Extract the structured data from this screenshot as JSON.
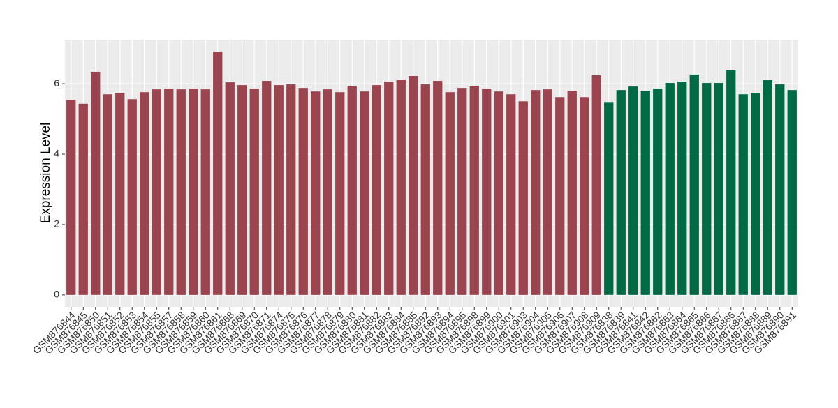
{
  "chart_data": {
    "type": "bar",
    "y_label": "Expression Level",
    "categories": [
      "GSM876844",
      "GSM876845",
      "GSM876850",
      "GSM876851",
      "GSM876852",
      "GSM876853",
      "GSM876854",
      "GSM876855",
      "GSM876857",
      "GSM876858",
      "GSM876859",
      "GSM876860",
      "GSM876861",
      "GSM876868",
      "GSM876869",
      "GSM876870",
      "GSM876871",
      "GSM876874",
      "GSM876875",
      "GSM876876",
      "GSM876877",
      "GSM876878",
      "GSM876879",
      "GSM876880",
      "GSM876881",
      "GSM876882",
      "GSM876883",
      "GSM876884",
      "GSM876885",
      "GSM876892",
      "GSM876893",
      "GSM876894",
      "GSM876895",
      "GSM876898",
      "GSM876899",
      "GSM876900",
      "GSM876901",
      "GSM876903",
      "GSM876904",
      "GSM876905",
      "GSM876906",
      "GSM876907",
      "GSM876908",
      "GSM876909",
      "GSM876838",
      "GSM876839",
      "GSM876841",
      "GSM876842",
      "GSM876862",
      "GSM876863",
      "GSM876864",
      "GSM876865",
      "GSM876866",
      "GSM876867",
      "GSM876886",
      "GSM876887",
      "GSM876888",
      "GSM876889",
      "GSM876890",
      "GSM876891"
    ],
    "values": [
      5.54,
      5.43,
      6.34,
      5.7,
      5.74,
      5.56,
      5.76,
      5.84,
      5.86,
      5.84,
      5.86,
      5.84,
      6.91,
      6.04,
      5.96,
      5.86,
      6.08,
      5.96,
      5.98,
      5.88,
      5.78,
      5.84,
      5.76,
      5.94,
      5.78,
      5.96,
      6.06,
      6.12,
      6.22,
      5.98,
      6.08,
      5.76,
      5.88,
      5.94,
      5.86,
      5.78,
      5.7,
      5.5,
      5.82,
      5.84,
      5.62,
      5.8,
      5.62,
      6.24,
      5.48,
      5.82,
      5.92,
      5.8,
      5.86,
      6.02,
      6.06,
      6.26,
      6.02,
      6.02,
      6.38,
      5.7,
      5.74,
      6.1,
      5.98,
      5.82
    ],
    "colors": [
      "#99444f",
      "#99444f",
      "#99444f",
      "#99444f",
      "#99444f",
      "#99444f",
      "#99444f",
      "#99444f",
      "#99444f",
      "#99444f",
      "#99444f",
      "#99444f",
      "#99444f",
      "#99444f",
      "#99444f",
      "#99444f",
      "#99444f",
      "#99444f",
      "#99444f",
      "#99444f",
      "#99444f",
      "#99444f",
      "#99444f",
      "#99444f",
      "#99444f",
      "#99444f",
      "#99444f",
      "#99444f",
      "#99444f",
      "#99444f",
      "#99444f",
      "#99444f",
      "#99444f",
      "#99444f",
      "#99444f",
      "#99444f",
      "#99444f",
      "#99444f",
      "#99444f",
      "#99444f",
      "#99444f",
      "#99444f",
      "#99444f",
      "#99444f",
      "#006a44",
      "#006a44",
      "#006a44",
      "#006a44",
      "#006a44",
      "#006a44",
      "#006a44",
      "#006a44",
      "#006a44",
      "#006a44",
      "#006a44",
      "#006a44",
      "#006a44",
      "#006a44",
      "#006a44",
      "#006a44"
    ],
    "ylim": [
      -0.34,
      7.25
    ],
    "yticks": [
      0,
      2,
      4,
      6
    ],
    "grid": true
  }
}
